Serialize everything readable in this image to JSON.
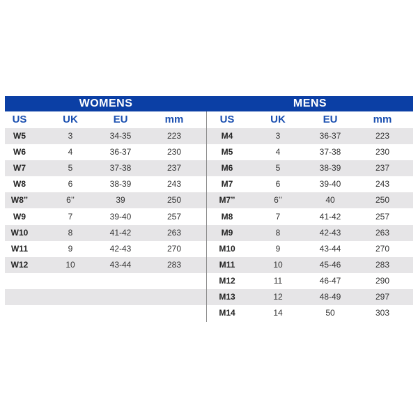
{
  "womens": {
    "title": "WOMENS",
    "headers": [
      "US",
      "UK",
      "EU",
      "mm"
    ],
    "rows": [
      [
        "W5",
        "3",
        "34-35",
        "223"
      ],
      [
        "W6",
        "4",
        "36-37",
        "230"
      ],
      [
        "W7",
        "5",
        "37-38",
        "237"
      ],
      [
        "W8",
        "6",
        "38-39",
        "243"
      ],
      [
        "W8’’",
        "6’’",
        "39",
        "250"
      ],
      [
        "W9",
        "7",
        "39-40",
        "257"
      ],
      [
        "W10",
        "8",
        "41-42",
        "263"
      ],
      [
        "W11",
        "9",
        "42-43",
        "270"
      ],
      [
        "W12",
        "10",
        "43-44",
        "283"
      ]
    ]
  },
  "mens": {
    "title": "MENS",
    "headers": [
      "US",
      "UK",
      "EU",
      "mm"
    ],
    "rows": [
      [
        "M4",
        "3",
        "36-37",
        "223"
      ],
      [
        "M5",
        "4",
        "37-38",
        "230"
      ],
      [
        "M6",
        "5",
        "38-39",
        "237"
      ],
      [
        "M7",
        "6",
        "39-40",
        "243"
      ],
      [
        "M7’’",
        "6’’",
        "40",
        "250"
      ],
      [
        "M8",
        "7",
        "41-42",
        "257"
      ],
      [
        "M9",
        "8",
        "42-43",
        "263"
      ],
      [
        "M10",
        "9",
        "43-44",
        "270"
      ],
      [
        "M11",
        "10",
        "45-46",
        "283"
      ],
      [
        "M12",
        "11",
        "46-47",
        "290"
      ],
      [
        "M13",
        "12",
        "48-49",
        "297"
      ],
      [
        "M14",
        "14",
        "50",
        "303"
      ]
    ]
  },
  "colors": {
    "header_bar": "#0b3fa5",
    "header_text": "#1a4fb0",
    "stripe": "#e6e5e7"
  }
}
